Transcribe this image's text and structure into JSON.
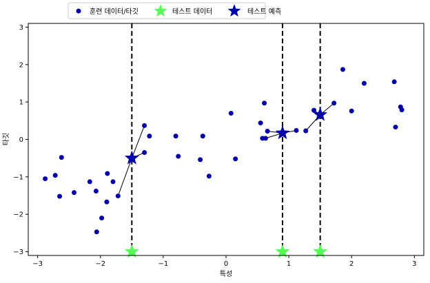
{
  "chart_data": {
    "type": "scatter",
    "title": "",
    "xlabel": "특성",
    "ylabel": "타깃",
    "xlim": [
      -3.15,
      3.15
    ],
    "ylim": [
      -3.1,
      3.1
    ],
    "xticks": [
      -3,
      -2,
      -1,
      0,
      1,
      2,
      3
    ],
    "yticks": [
      -3,
      -2,
      -1,
      0,
      1,
      2,
      3
    ],
    "xtick_labels": [
      "−3",
      "−2",
      "−1",
      "0",
      "1",
      "2",
      "3"
    ],
    "ytick_labels": [
      "−3",
      "−2",
      "−1",
      "0",
      "1",
      "2",
      "3"
    ],
    "grid": false,
    "legend_position": "top, outside plot",
    "colors": {
      "train": "#0000aa",
      "test": "#55ff55",
      "prediction": "#0000aa",
      "vlines": "#000000",
      "connectors": "#000000"
    },
    "series": [
      {
        "name": "훈련 데이터/타깃",
        "marker": "circle",
        "points": [
          [
            -2.88,
            -1.05
          ],
          [
            -2.72,
            -0.96
          ],
          [
            -2.65,
            -1.52
          ],
          [
            -2.62,
            -0.48
          ],
          [
            -2.42,
            -1.42
          ],
          [
            -2.17,
            -1.13
          ],
          [
            -2.07,
            -1.38
          ],
          [
            -2.06,
            -2.47
          ],
          [
            -1.98,
            -2.1
          ],
          [
            -1.9,
            -1.67
          ],
          [
            -1.89,
            -0.91
          ],
          [
            -1.8,
            -1.13
          ],
          [
            -1.72,
            -1.51
          ],
          [
            -1.3,
            -0.35
          ],
          [
            -1.3,
            0.37
          ],
          [
            -1.22,
            0.09
          ],
          [
            -0.8,
            0.09
          ],
          [
            -0.76,
            -0.45
          ],
          [
            -0.41,
            -0.54
          ],
          [
            -0.37,
            0.09
          ],
          [
            -0.27,
            -0.98
          ],
          [
            0.08,
            0.7
          ],
          [
            0.15,
            -0.52
          ],
          [
            0.55,
            0.44
          ],
          [
            0.58,
            0.03
          ],
          [
            0.61,
            0.97
          ],
          [
            0.63,
            0.03
          ],
          [
            0.66,
            0.22
          ],
          [
            1.12,
            0.24
          ],
          [
            1.27,
            0.23
          ],
          [
            1.4,
            0.78
          ],
          [
            1.72,
            0.97
          ],
          [
            1.86,
            1.87
          ],
          [
            2.0,
            0.76
          ],
          [
            2.2,
            1.5
          ],
          [
            2.68,
            1.54
          ],
          [
            2.7,
            0.33
          ],
          [
            2.78,
            0.87
          ],
          [
            2.8,
            0.79
          ]
        ]
      },
      {
        "name": "테스트 데이터",
        "marker": "star",
        "points": [
          [
            -1.5,
            -3
          ],
          [
            0.9,
            -3
          ],
          [
            1.5,
            -3
          ]
        ]
      },
      {
        "name": "테스트 예측",
        "marker": "star",
        "points": [
          [
            -1.5,
            -0.5
          ],
          [
            0.9,
            0.17
          ],
          [
            1.5,
            0.66
          ]
        ]
      }
    ],
    "vlines_x": [
      -1.5,
      0.9,
      1.5
    ],
    "neighbor_lines": [
      {
        "from": [
          -1.5,
          -0.5
        ],
        "to": [
          -1.3,
          0.37
        ]
      },
      {
        "from": [
          -1.5,
          -0.5
        ],
        "to": [
          -1.3,
          -0.35
        ]
      },
      {
        "from": [
          -1.5,
          -0.5
        ],
        "to": [
          -1.72,
          -1.51
        ]
      },
      {
        "from": [
          0.9,
          0.17
        ],
        "to": [
          0.66,
          0.22
        ]
      },
      {
        "from": [
          0.9,
          0.17
        ],
        "to": [
          1.12,
          0.24
        ]
      },
      {
        "from": [
          0.9,
          0.17
        ],
        "to": [
          0.63,
          0.03
        ]
      },
      {
        "from": [
          1.5,
          0.66
        ],
        "to": [
          1.4,
          0.78
        ]
      },
      {
        "from": [
          1.5,
          0.66
        ],
        "to": [
          1.72,
          0.97
        ]
      },
      {
        "from": [
          1.5,
          0.66
        ],
        "to": [
          1.27,
          0.23
        ]
      }
    ]
  }
}
